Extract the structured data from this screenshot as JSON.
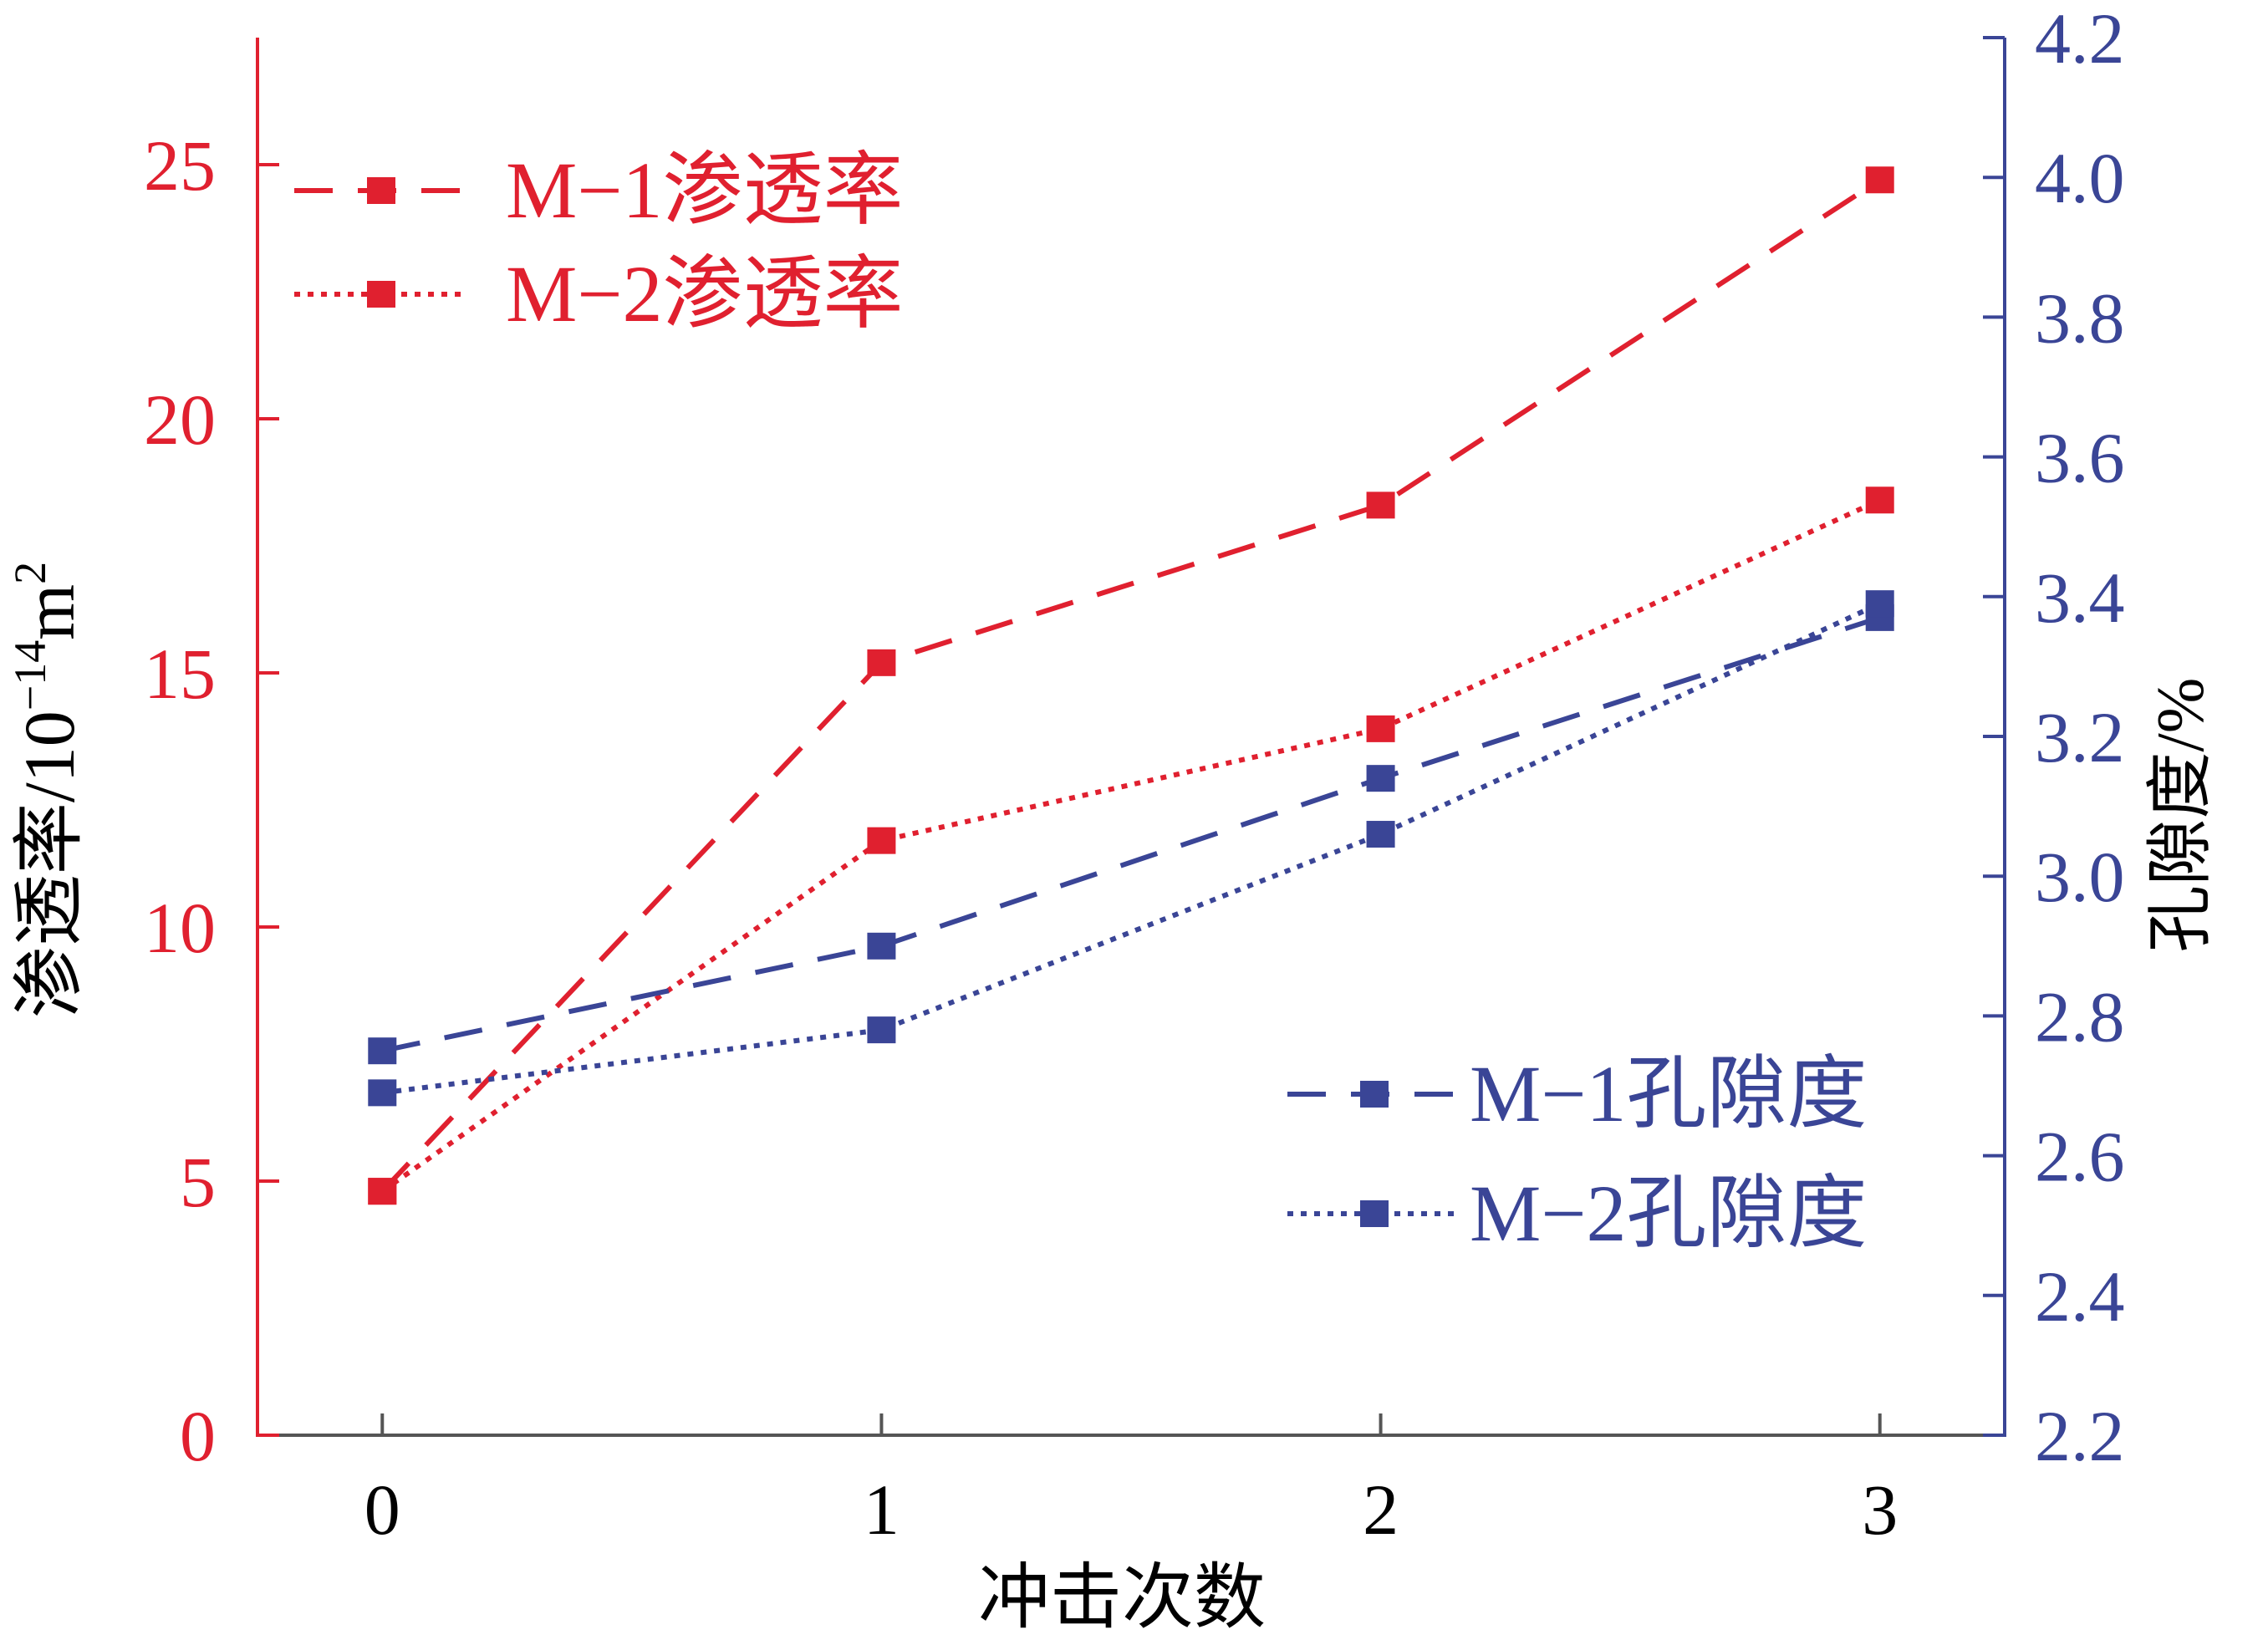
{
  "chart_data": {
    "type": "line",
    "x": [
      0,
      1,
      2,
      3
    ],
    "xlabel": "冲击次数",
    "x_tick_labels": [
      "0",
      "1",
      "2",
      "3"
    ],
    "xlim": [
      -0.25,
      3.25
    ],
    "y_left": {
      "label_main": "渗透率/10",
      "label_sup": "−14",
      "label_tail": "m",
      "label_sup2": "2",
      "ylim": [
        0,
        27.5
      ],
      "ticks": [
        0,
        5,
        10,
        15,
        20,
        25
      ],
      "tick_labels": [
        "0",
        "5",
        "10",
        "15",
        "20",
        "25"
      ],
      "color": "#e0202f"
    },
    "y_right": {
      "label": "孔隙度/%",
      "ylim": [
        2.2,
        4.2
      ],
      "ticks": [
        2.2,
        2.4,
        2.6,
        2.8,
        3.0,
        3.2,
        3.4,
        3.6,
        3.8,
        4.0,
        4.2
      ],
      "tick_labels": [
        "2.2",
        "2.4",
        "2.6",
        "2.8",
        "3.0",
        "3.2",
        "3.4",
        "3.6",
        "3.8",
        "4.0",
        "4.2"
      ],
      "color": "#3a4596"
    },
    "series": [
      {
        "name": "M−1渗透率",
        "axis": "left",
        "style": "dashed",
        "color": "#e0202f",
        "values": [
          4.8,
          15.2,
          18.3,
          24.7
        ]
      },
      {
        "name": "M−2渗透率",
        "axis": "left",
        "style": "dotted",
        "color": "#e0202f",
        "values": [
          4.8,
          11.7,
          13.9,
          18.4
        ]
      },
      {
        "name": "M−1孔隙度",
        "axis": "right",
        "style": "dashed",
        "color": "#3a4596",
        "values": [
          2.75,
          2.9,
          3.14,
          3.37
        ]
      },
      {
        "name": "M−2孔隙度",
        "axis": "right",
        "style": "dotted",
        "color": "#3a4596",
        "values": [
          2.69,
          2.78,
          3.06,
          3.39
        ]
      }
    ],
    "legend_placement": [
      "top-left",
      "bottom-right"
    ],
    "grid": false
  }
}
